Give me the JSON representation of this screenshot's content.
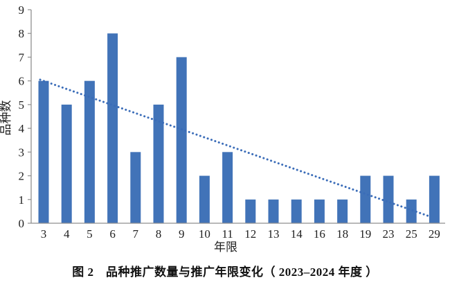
{
  "figure": {
    "caption": "图 2　品种推广数量与推广年限变化（ 2023–2024 年度 ）"
  },
  "chart_data": {
    "type": "bar",
    "categories": [
      "3",
      "4",
      "5",
      "6",
      "7",
      "8",
      "9",
      "10",
      "11",
      "12",
      "13",
      "14",
      "16",
      "18",
      "19",
      "23",
      "25",
      "29"
    ],
    "values": [
      6,
      5,
      6,
      8,
      3,
      5,
      7,
      2,
      3,
      1,
      1,
      1,
      1,
      1,
      2,
      2,
      1,
      2
    ],
    "title": "",
    "xlabel": "年限",
    "ylabel": "品种数",
    "ylim": [
      0,
      9
    ],
    "yticks": [
      0,
      1,
      2,
      3,
      4,
      5,
      6,
      7,
      8,
      9
    ],
    "grid": false,
    "legend_position": "none",
    "trendline": {
      "style": "dotted",
      "x_start": "3",
      "y_start": 6.05,
      "x_end": "29",
      "y_end": 0.3
    },
    "colors": {
      "bar": "#4173b8",
      "trendline": "#3a6cb8",
      "axis": "#8f8f8f",
      "tick_text": "#1f1f1f"
    }
  }
}
